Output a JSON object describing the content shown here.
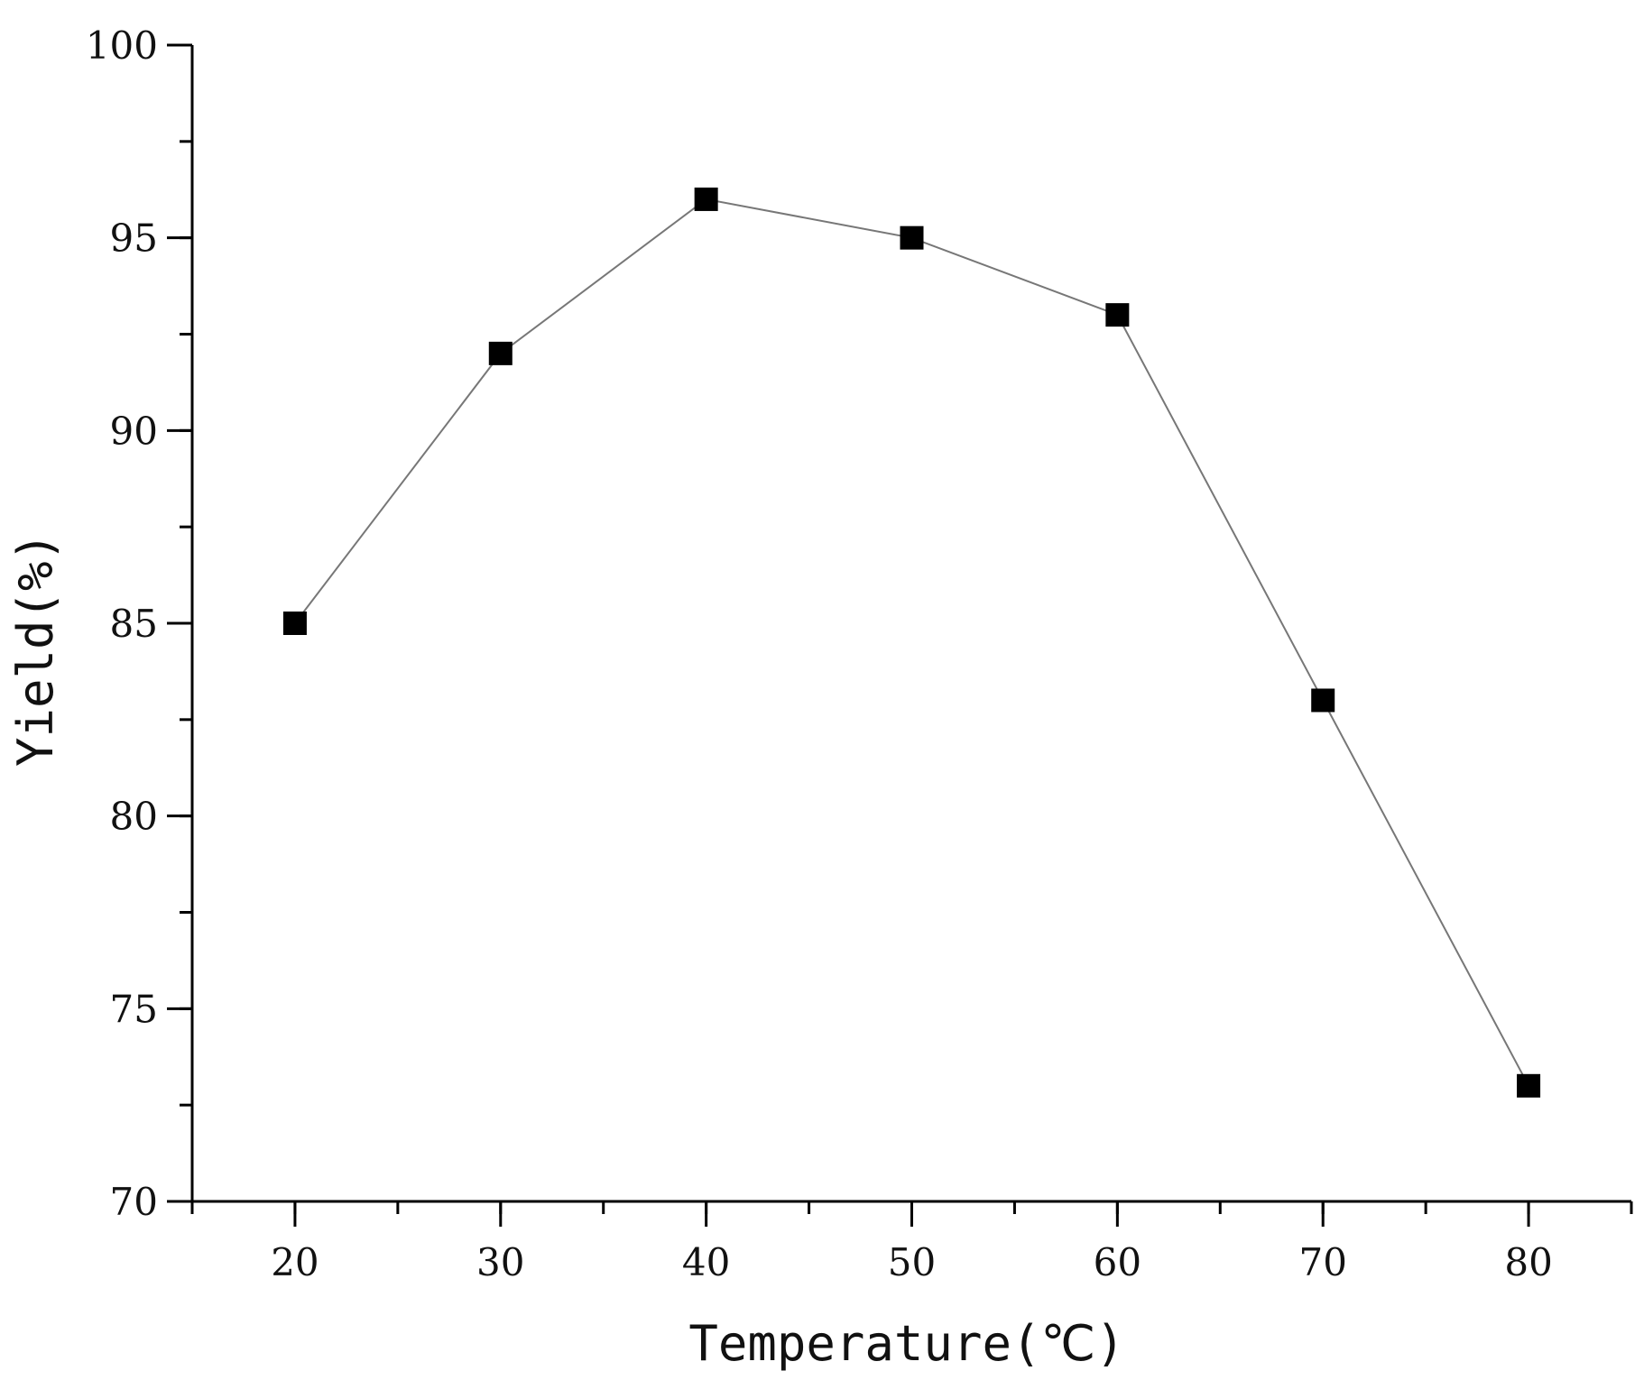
{
  "chart_data": {
    "type": "line",
    "title": "",
    "xlabel": "Temperature(℃)",
    "ylabel": "Yield(%)",
    "x": [
      20,
      30,
      40,
      50,
      60,
      70,
      80
    ],
    "series": [
      {
        "values": [
          85,
          92,
          96,
          95,
          93,
          83,
          73
        ]
      }
    ],
    "xlim": [
      15,
      85
    ],
    "ylim": [
      70,
      100
    ],
    "x_major_ticks": [
      20,
      30,
      40,
      50,
      60,
      70,
      80
    ],
    "y_major_ticks": [
      70,
      75,
      80,
      85,
      90,
      95,
      100
    ],
    "grid": false,
    "legend": "none",
    "marker": "square",
    "colors": {
      "marker": "#000000",
      "line": "#777777",
      "axis": "#000000"
    }
  }
}
